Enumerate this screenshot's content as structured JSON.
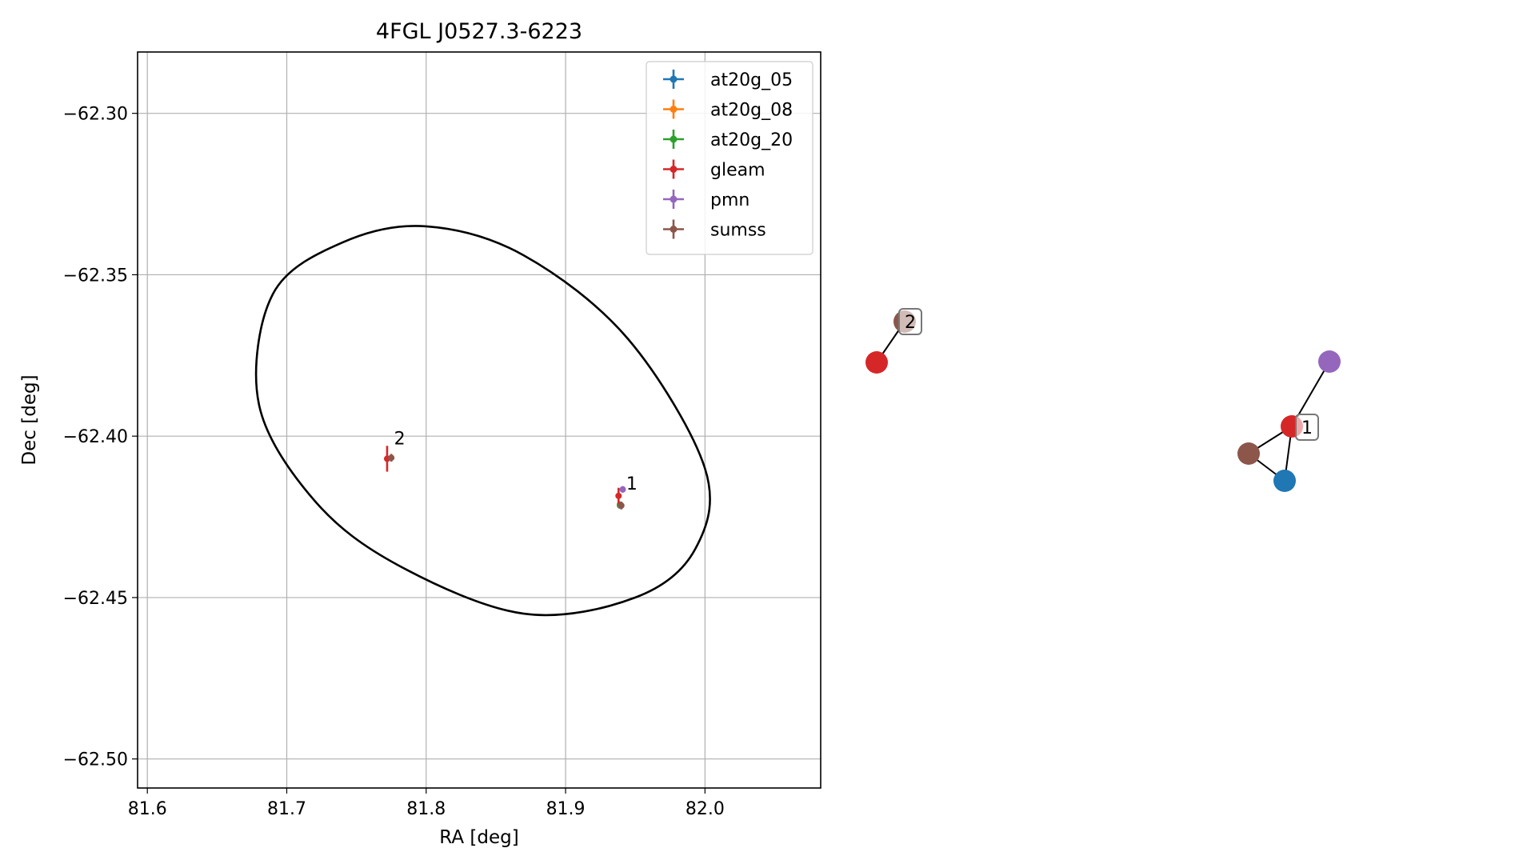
{
  "chart_data": [
    {
      "type": "scatter",
      "title": "4FGL J0527.3-6223",
      "xlabel": "RA [deg]",
      "ylabel": "Dec [deg]",
      "xlim": [
        81.593,
        82.083
      ],
      "ylim": [
        -62.509,
        -62.281
      ],
      "x_ticks": [
        81.6,
        81.7,
        81.8,
        81.9,
        82.0
      ],
      "x_tick_labels": [
        "81.6",
        "81.7",
        "81.8",
        "81.9",
        "82.0"
      ],
      "y_ticks": [
        -62.3,
        -62.35,
        -62.4,
        -62.45,
        -62.5
      ],
      "y_tick_labels": [
        "−62.30",
        "−62.35",
        "−62.40",
        "−62.45",
        "−62.50"
      ],
      "grid": true,
      "legend_position": "top-right",
      "ellipse": {
        "center": [
          81.84,
          -62.395
        ],
        "points": [
          [
            81.8,
            -62.335
          ],
          [
            81.87,
            -62.344
          ],
          [
            81.945,
            -62.37
          ],
          [
            82.0,
            -62.41
          ],
          [
            81.993,
            -62.435
          ],
          [
            81.95,
            -62.45
          ],
          [
            81.87,
            -62.455
          ],
          [
            81.78,
            -62.44
          ],
          [
            81.72,
            -62.42
          ],
          [
            81.68,
            -62.39
          ],
          [
            81.69,
            -62.356
          ],
          [
            81.74,
            -62.34
          ]
        ],
        "color": "#000000"
      },
      "series": [
        {
          "name": "at20g_05",
          "color": "#1f77b4",
          "points": [
            {
              "x": 81.939,
              "y": -62.4215,
              "xerr": 0.0005,
              "yerr": 0.0006
            }
          ]
        },
        {
          "name": "at20g_08",
          "color": "#ff7f0e",
          "points": [
            {
              "x": 81.939,
              "y": -62.4213,
              "xerr": 0.0005,
              "yerr": 0.0006
            }
          ]
        },
        {
          "name": "at20g_20",
          "color": "#2ca02c",
          "points": [
            {
              "x": 81.939,
              "y": -62.4212,
              "xerr": 0.0005,
              "yerr": 0.0006
            }
          ]
        },
        {
          "name": "gleam",
          "color": "#d62728",
          "points": [
            {
              "x": 81.938,
              "y": -62.4185,
              "xerr": 0.0007,
              "yerr": 0.0025
            },
            {
              "x": 81.772,
              "y": -62.407,
              "xerr": 0.0008,
              "yerr": 0.004
            }
          ]
        },
        {
          "name": "pmn",
          "color": "#9467bd",
          "points": [
            {
              "x": 81.941,
              "y": -62.4165,
              "xerr": 0.0015,
              "yerr": 0.001
            }
          ]
        },
        {
          "name": "sumss",
          "color": "#8c564b",
          "points": [
            {
              "x": 81.94,
              "y": -62.4215,
              "xerr": 0.001,
              "yerr": 0.0012
            },
            {
              "x": 81.775,
              "y": -62.4067,
              "xerr": 0.001,
              "yerr": 0.0012
            }
          ]
        }
      ],
      "annotations": [
        {
          "text": "1",
          "x": 81.9435,
          "y": -62.4165
        },
        {
          "text": "2",
          "x": 81.777,
          "y": -62.4025
        }
      ]
    },
    {
      "type": "network",
      "cluster_labels": [
        "2",
        "1"
      ],
      "nodes": [
        {
          "id": "c2-gleam",
          "color": "#d62728"
        },
        {
          "id": "c2-sumss",
          "color": "#8c564b"
        },
        {
          "id": "c1-pmn",
          "color": "#9467bd"
        },
        {
          "id": "c1-gleam",
          "color": "#d62728"
        },
        {
          "id": "c1-sumss",
          "color": "#8c564b"
        },
        {
          "id": "c1-at20g",
          "color": "#1f77b4"
        }
      ],
      "edges": [
        [
          "c2-gleam",
          "c2-sumss"
        ],
        [
          "c1-pmn",
          "c1-gleam"
        ],
        [
          "c1-gleam",
          "c1-at20g"
        ],
        [
          "c1-sumss",
          "c1-at20g"
        ],
        [
          "c1-sumss",
          "c1-gleam"
        ]
      ]
    }
  ]
}
